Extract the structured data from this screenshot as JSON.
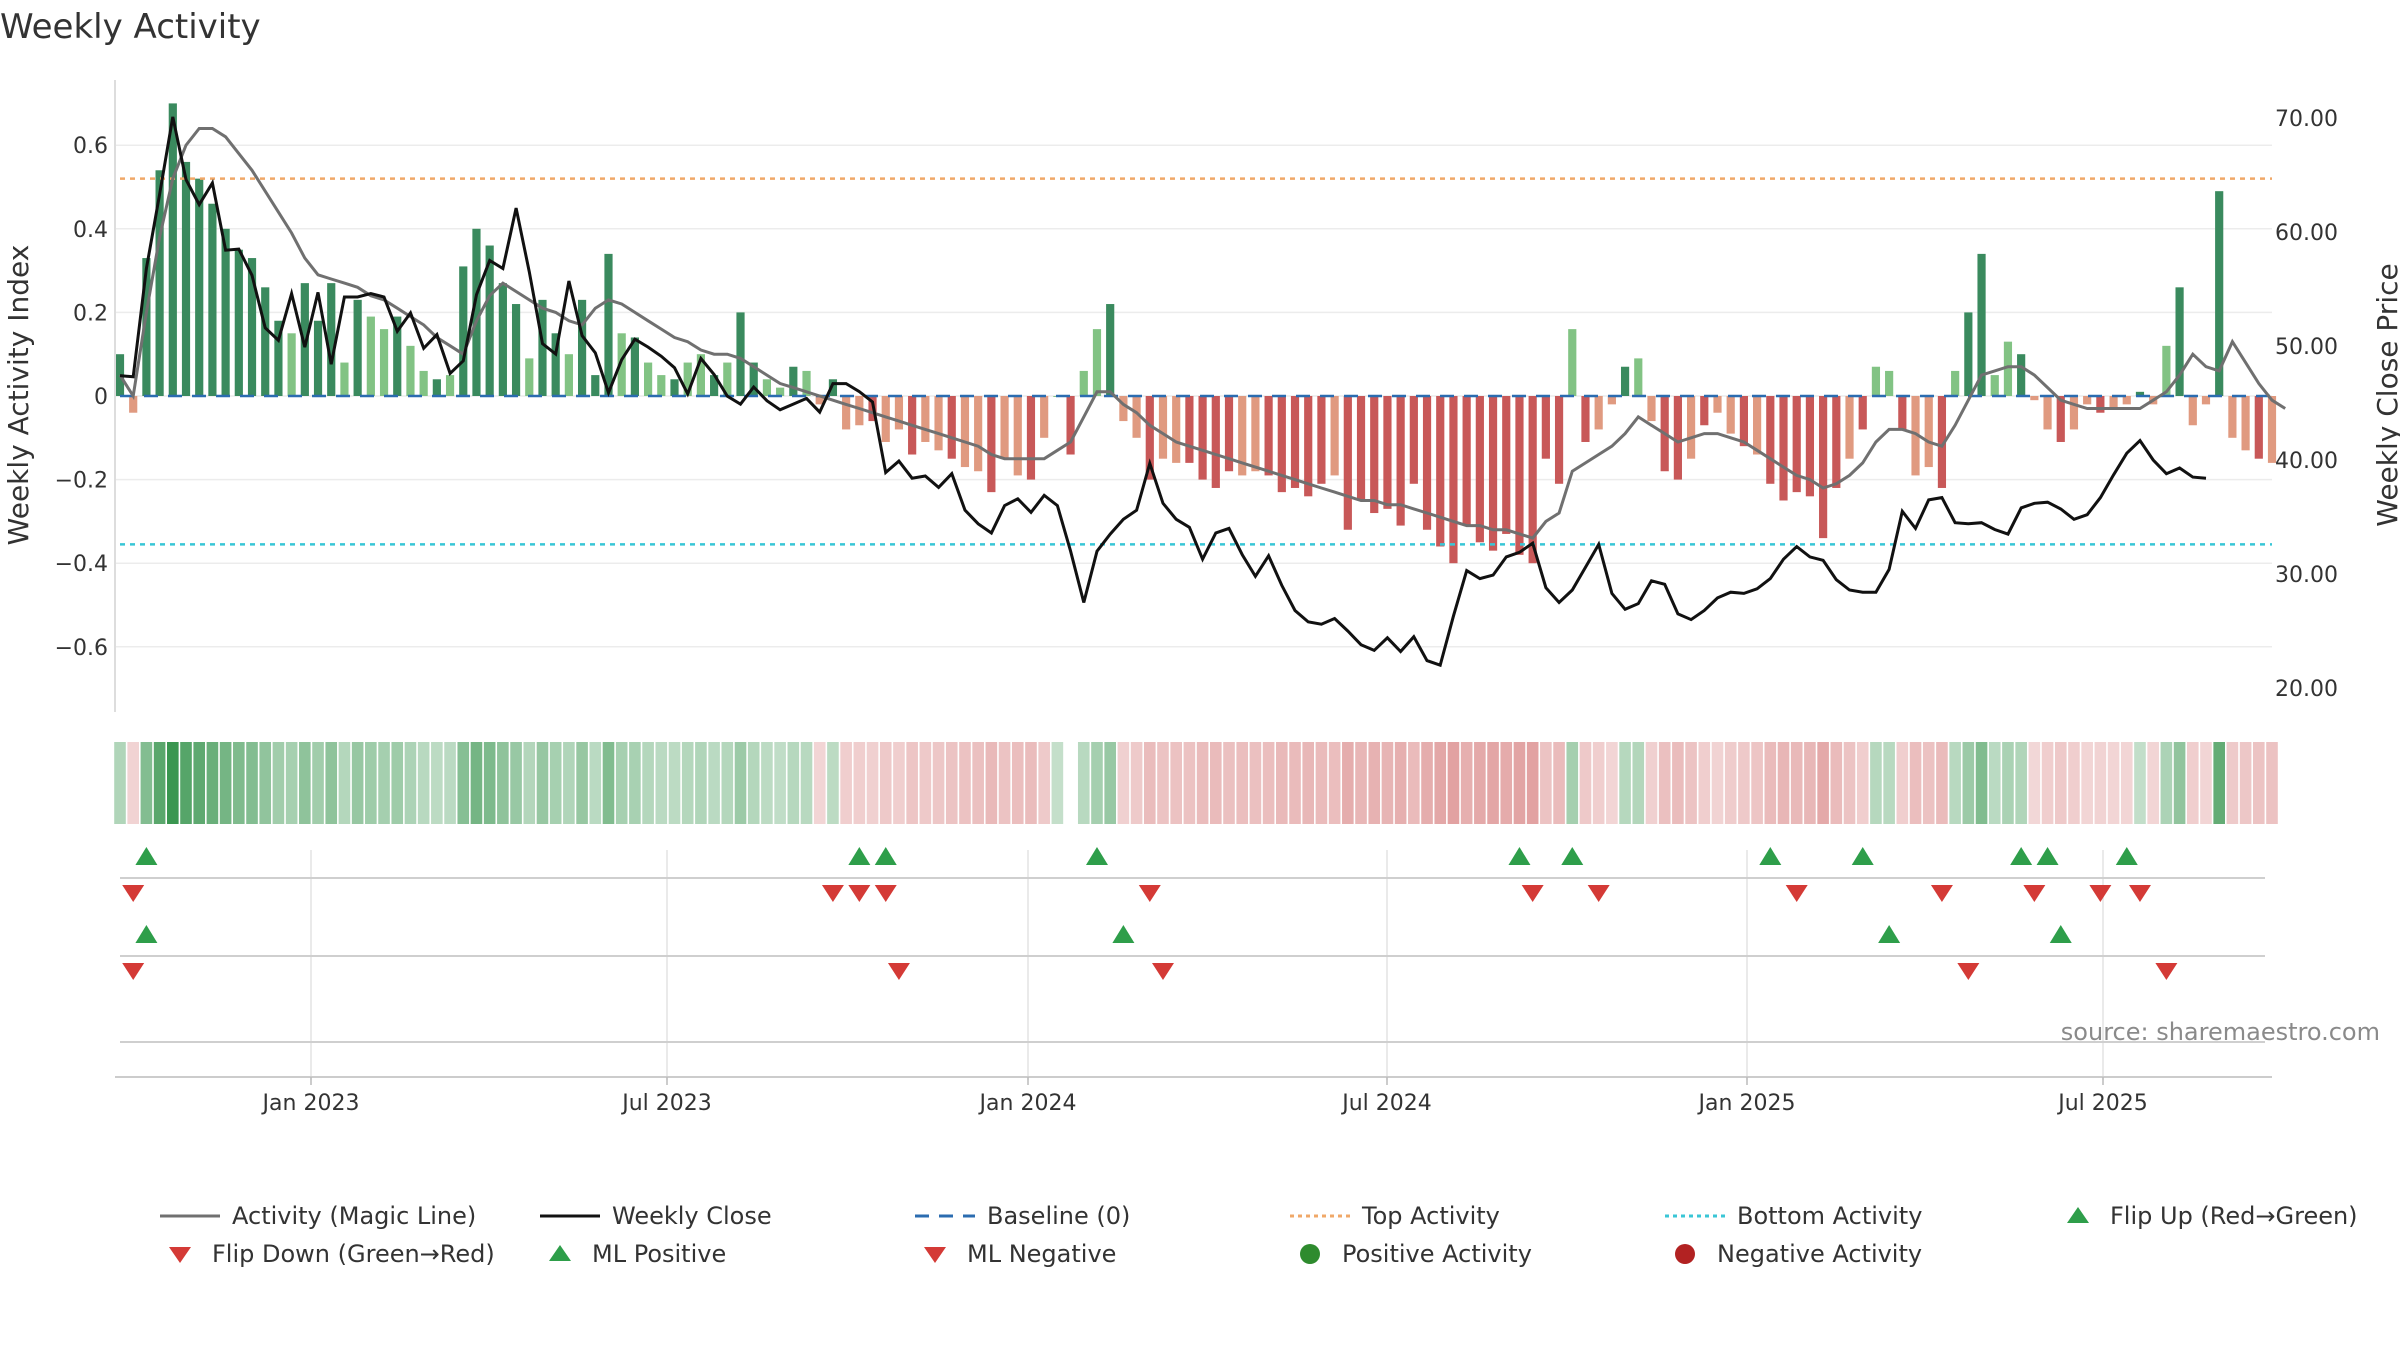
{
  "chart_data": {
    "type": "bar+line",
    "title": "Weekly Activity",
    "ylabel_left": "Weekly Activity Index",
    "ylabel_right": "Weekly Close Price",
    "left_yticks": [
      "0.6",
      "0.4",
      "0.2",
      "0",
      "−0.2",
      "−0.4",
      "−0.6"
    ],
    "right_yticks": [
      "70.00",
      "60.00",
      "50.00",
      "40.00",
      "30.00",
      "20.00"
    ],
    "xticks": [
      "Jan 2023",
      "Jul 2023",
      "Jan 2024",
      "Jul 2024",
      "Jan 2025",
      "Jul 2025"
    ],
    "source": "source: sharemaestro.com",
    "reference_lines": {
      "top_activity": 0.52,
      "bottom_activity": -0.355,
      "baseline": 0
    },
    "activity": [
      0.1,
      -0.04,
      0.33,
      0.54,
      0.7,
      0.56,
      0.52,
      0.46,
      0.4,
      0.35,
      0.33,
      0.26,
      0.18,
      0.15,
      0.27,
      0.18,
      0.27,
      0.08,
      0.23,
      0.19,
      0.16,
      0.19,
      0.12,
      0.06,
      0.04,
      0.05,
      0.31,
      0.4,
      0.36,
      0.27,
      0.22,
      0.09,
      0.23,
      0.15,
      0.1,
      0.23,
      0.05,
      0.34,
      0.15,
      0.14,
      0.08,
      0.05,
      0.04,
      0.08,
      0.1,
      0.05,
      0.08,
      0.2,
      0.08,
      0.04,
      0.02,
      0.07,
      0.06,
      -0.02,
      0.04,
      -0.08,
      -0.07,
      -0.06,
      -0.11,
      -0.08,
      -0.14,
      -0.11,
      -0.13,
      -0.15,
      -0.17,
      -0.18,
      -0.23,
      -0.15,
      -0.19,
      -0.2,
      -0.1,
      0.0,
      -0.14,
      0.06,
      0.16,
      0.22,
      -0.06,
      -0.1,
      -0.2,
      -0.15,
      -0.16,
      -0.16,
      -0.2,
      -0.22,
      -0.18,
      -0.19,
      -0.18,
      -0.19,
      -0.23,
      -0.22,
      -0.24,
      -0.21,
      -0.19,
      -0.32,
      -0.25,
      -0.28,
      -0.27,
      -0.31,
      -0.21,
      -0.32,
      -0.36,
      -0.4,
      -0.31,
      -0.35,
      -0.37,
      -0.33,
      -0.38,
      -0.4,
      -0.15,
      -0.21,
      0.16,
      -0.11,
      -0.08,
      -0.02,
      0.07,
      0.09,
      -0.06,
      -0.18,
      -0.2,
      -0.15,
      -0.07,
      -0.04,
      -0.09,
      -0.12,
      -0.14,
      -0.21,
      -0.25,
      -0.23,
      -0.24,
      -0.34,
      -0.22,
      -0.15,
      -0.08,
      0.07,
      0.06,
      -0.08,
      -0.19,
      -0.17,
      -0.22,
      0.06,
      0.2,
      0.34,
      0.05,
      0.13,
      0.1,
      -0.01,
      -0.08,
      -0.11,
      -0.08,
      -0.02,
      -0.04,
      -0.03,
      -0.02,
      0.01,
      -0.02,
      0.12,
      0.26,
      -0.07,
      -0.02,
      0.49,
      -0.1,
      -0.13,
      -0.15,
      -0.16
    ],
    "magic_line": [
      0.05,
      0.0,
      0.2,
      0.38,
      0.52,
      0.6,
      0.64,
      0.64,
      0.62,
      0.58,
      0.54,
      0.49,
      0.44,
      0.39,
      0.33,
      0.29,
      0.28,
      0.27,
      0.26,
      0.24,
      0.23,
      0.21,
      0.19,
      0.17,
      0.14,
      0.12,
      0.1,
      0.18,
      0.24,
      0.27,
      0.25,
      0.23,
      0.21,
      0.2,
      0.18,
      0.17,
      0.21,
      0.23,
      0.22,
      0.2,
      0.18,
      0.16,
      0.14,
      0.13,
      0.11,
      0.1,
      0.1,
      0.09,
      0.07,
      0.05,
      0.03,
      0.02,
      0.01,
      0.0,
      -0.01,
      -0.02,
      -0.03,
      -0.04,
      -0.05,
      -0.06,
      -0.07,
      -0.08,
      -0.09,
      -0.1,
      -0.11,
      -0.12,
      -0.14,
      -0.15,
      -0.15,
      -0.15,
      -0.15,
      -0.13,
      -0.11,
      -0.05,
      0.01,
      0.01,
      -0.02,
      -0.04,
      -0.07,
      -0.09,
      -0.11,
      -0.12,
      -0.13,
      -0.14,
      -0.15,
      -0.16,
      -0.17,
      -0.18,
      -0.19,
      -0.2,
      -0.21,
      -0.22,
      -0.23,
      -0.24,
      -0.25,
      -0.25,
      -0.26,
      -0.26,
      -0.27,
      -0.28,
      -0.29,
      -0.3,
      -0.31,
      -0.31,
      -0.32,
      -0.32,
      -0.33,
      -0.34,
      -0.3,
      -0.28,
      -0.18,
      -0.16,
      -0.14,
      -0.12,
      -0.09,
      -0.05,
      -0.07,
      -0.09,
      -0.11,
      -0.1,
      -0.09,
      -0.09,
      -0.1,
      -0.11,
      -0.13,
      -0.15,
      -0.17,
      -0.19,
      -0.2,
      -0.22,
      -0.21,
      -0.19,
      -0.16,
      -0.11,
      -0.08,
      -0.08,
      -0.09,
      -0.11,
      -0.12,
      -0.07,
      -0.01,
      0.05,
      0.06,
      0.07,
      0.07,
      0.05,
      0.02,
      -0.01,
      -0.02,
      -0.03,
      -0.03,
      -0.03,
      -0.03,
      -0.03,
      -0.01,
      0.01,
      0.05,
      0.1,
      0.07,
      0.06,
      0.13,
      0.08,
      0.03,
      -0.01,
      -0.03
    ],
    "weekly_close": [
      47.4,
      47.3,
      56.8,
      63.3,
      70.1,
      64.6,
      62.4,
      64.3,
      58.4,
      58.5,
      56.2,
      51.6,
      50.5,
      54.6,
      49.9,
      54.7,
      48.4,
      54.3,
      54.3,
      54.6,
      54.3,
      51.3,
      52.9,
      49.8,
      51.0,
      47.6,
      48.7,
      54.5,
      57.5,
      56.8,
      62.1,
      56.5,
      50.2,
      49.3,
      55.7,
      50.9,
      49.4,
      45.9,
      48.8,
      50.6,
      49.9,
      49.1,
      48.1,
      45.8,
      48.9,
      47.5,
      45.6,
      44.9,
      46.4,
      45.2,
      44.4,
      44.9,
      45.4,
      44.2,
      46.7,
      46.7,
      46.0,
      45.1,
      38.9,
      39.9,
      38.4,
      38.6,
      37.6,
      38.8,
      35.6,
      34.4,
      33.6,
      36.0,
      36.6,
      35.4,
      36.9,
      36.0,
      32.0,
      27.5,
      32.0,
      33.5,
      34.8,
      35.6,
      39.7,
      36.2,
      34.8,
      34.1,
      31.3,
      33.6,
      34.0,
      31.7,
      29.8,
      31.6,
      29.0,
      26.8,
      25.8,
      25.6,
      26.1,
      25.0,
      23.8,
      23.3,
      24.4,
      23.2,
      24.5,
      22.4,
      22.0,
      26.3,
      30.3,
      29.6,
      29.9,
      31.5,
      31.9,
      32.7,
      28.8,
      27.5,
      28.6,
      30.6,
      32.6,
      28.3,
      26.9,
      27.4,
      29.4,
      29.1,
      26.5,
      26.0,
      26.8,
      27.9,
      28.4,
      28.3,
      28.7,
      29.6,
      31.3,
      32.4,
      31.5,
      31.2,
      29.5,
      28.6,
      28.4,
      28.4,
      30.4,
      35.5,
      34.0,
      36.5,
      36.7,
      34.5,
      34.4,
      34.5,
      33.9,
      33.5,
      35.8,
      36.2,
      36.3,
      35.7,
      34.8,
      35.2,
      36.7,
      38.7,
      40.6,
      41.7,
      40.0,
      38.8,
      39.3,
      38.5,
      38.4
    ],
    "signal_rows": [
      {
        "row": "flip",
        "up_weeks": [
          2,
          56,
          58,
          74,
          106,
          110,
          125,
          132,
          144,
          146,
          152
        ],
        "down_weeks": [
          1,
          54,
          56,
          58,
          78,
          107,
          112,
          127,
          138,
          145,
          150,
          153
        ]
      },
      {
        "row": "ml",
        "up_weeks": [
          2,
          76,
          134,
          147
        ],
        "down_weeks": [
          1,
          59,
          79,
          140,
          155
        ]
      },
      {
        "row": "activity",
        "up_weeks": [],
        "down_weeks": []
      }
    ],
    "legend": [
      {
        "label": "Activity (Magic Line)",
        "color": "#707070",
        "marker": "line"
      },
      {
        "label": "Weekly Close",
        "color": "#111111",
        "marker": "line"
      },
      {
        "label": "Baseline (0)",
        "color": "#2b6cb0",
        "marker": "dash"
      },
      {
        "label": "Top Activity",
        "color": "#f0a868",
        "marker": "dot-line"
      },
      {
        "label": "Bottom Activity",
        "color": "#39c6d6",
        "marker": "dot-line"
      },
      {
        "label": "Flip Up (Red→Green)",
        "color": "#2e9e4a",
        "marker": "triangle-up"
      },
      {
        "label": "Flip Down (Green→Red)",
        "color": "#d43a36",
        "marker": "triangle-down"
      },
      {
        "label": "ML Positive",
        "color": "#2e9e4a",
        "marker": "triangle-up"
      },
      {
        "label": "ML Negative",
        "color": "#d43a36",
        "marker": "triangle-down"
      },
      {
        "label": "Positive Activity",
        "color": "#2e8b2e",
        "marker": "circle"
      },
      {
        "label": "Negative Activity",
        "color": "#b22222",
        "marker": "circle"
      }
    ]
  }
}
